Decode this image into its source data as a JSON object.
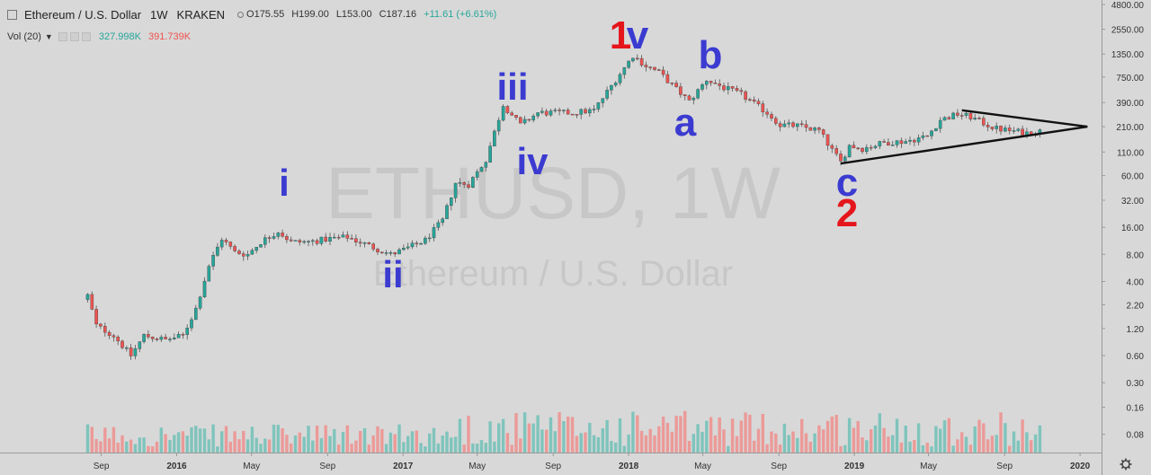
{
  "header": {
    "title": "Ethereum / U.S. Dollar",
    "interval": "1W",
    "exchange": "KRAKEN",
    "open": "O175.55",
    "high": "H199.00",
    "low": "L153.00",
    "close": "C187.16",
    "change": "+11.61 (+6.61%)"
  },
  "volume_legend": {
    "label": "Vol (20)",
    "value_up": "327.998K",
    "value_down": "391.739K"
  },
  "watermark": {
    "symbol": "ETHUSD, 1W",
    "name": "Ethereum / U.S. Dollar"
  },
  "colors": {
    "background": "#d8d8d8",
    "up": "#26a69a",
    "down": "#ef5350",
    "wave_label_blue": "#3b3bd1",
    "wave_label_red": "#e5161b"
  },
  "chart_data": {
    "type": "candlestick",
    "scale": "log",
    "y_ticks": [
      "4800.00",
      "2550.00",
      "1350.00",
      "750.00",
      "390.00",
      "210.00",
      "110.00",
      "60.00",
      "32.00",
      "16.00",
      "8.00",
      "4.00",
      "2.20",
      "1.20",
      "0.60",
      "0.30",
      "0.16",
      "0.08"
    ],
    "x_ticks": [
      "Sep",
      "2016",
      "May",
      "Sep",
      "2017",
      "May",
      "Sep",
      "2018",
      "May",
      "Sep",
      "2019",
      "May",
      "Sep",
      "2020"
    ],
    "price_path": [
      [
        "2015-08-10",
        2.8
      ],
      [
        "2015-08-24",
        1.3
      ],
      [
        "2015-09-21",
        1.0
      ],
      [
        "2015-10-19",
        0.6
      ],
      [
        "2015-11-09",
        1.0
      ],
      [
        "2015-12-14",
        0.9
      ],
      [
        "2016-01-11",
        1.0
      ],
      [
        "2016-02-01",
        2.0
      ],
      [
        "2016-02-22",
        6.0
      ],
      [
        "2016-03-14",
        12.0
      ],
      [
        "2016-04-04",
        8.5
      ],
      [
        "2016-04-25",
        8.0
      ],
      [
        "2016-05-16",
        11.0
      ],
      [
        "2016-06-13",
        14.5
      ],
      [
        "2016-07-04",
        11.0
      ],
      [
        "2016-08-01",
        11.0
      ],
      [
        "2016-09-05",
        12.0
      ],
      [
        "2016-10-03",
        12.5
      ],
      [
        "2016-11-07",
        10.0
      ],
      [
        "2016-12-12",
        8.0
      ],
      [
        "2017-01-02",
        9.0
      ],
      [
        "2017-02-06",
        11.5
      ],
      [
        "2017-03-06",
        19.0
      ],
      [
        "2017-03-27",
        50.0
      ],
      [
        "2017-04-17",
        48.0
      ],
      [
        "2017-05-15",
        90.0
      ],
      [
        "2017-06-05",
        260.0
      ],
      [
        "2017-06-12",
        370.0
      ],
      [
        "2017-07-10",
        220.0
      ],
      [
        "2017-08-07",
        300.0
      ],
      [
        "2017-09-04",
        300.0
      ],
      [
        "2017-10-02",
        300.0
      ],
      [
        "2017-11-06",
        320.0
      ],
      [
        "2017-12-11",
        700.0
      ],
      [
        "2018-01-08",
        1300.0
      ],
      [
        "2018-01-29",
        1000.0
      ],
      [
        "2018-02-19",
        850.0
      ],
      [
        "2018-03-19",
        550.0
      ],
      [
        "2018-04-09",
        400.0
      ],
      [
        "2018-05-07",
        700.0
      ],
      [
        "2018-06-04",
        570.0
      ],
      [
        "2018-07-02",
        480.0
      ],
      [
        "2018-08-13",
        300.0
      ],
      [
        "2018-09-03",
        220.0
      ],
      [
        "2018-10-01",
        215.0
      ],
      [
        "2018-11-05",
        190.0
      ],
      [
        "2018-11-26",
        115.0
      ],
      [
        "2018-12-10",
        85.0
      ],
      [
        "2018-12-24",
        130.0
      ],
      [
        "2019-01-14",
        120.0
      ],
      [
        "2019-02-18",
        140.0
      ],
      [
        "2019-03-25",
        145.0
      ],
      [
        "2019-04-29",
        165.0
      ],
      [
        "2019-05-20",
        250.0
      ],
      [
        "2019-06-17",
        290.0
      ],
      [
        "2019-07-08",
        270.0
      ],
      [
        "2019-07-29",
        230.0
      ],
      [
        "2019-08-19",
        200.0
      ],
      [
        "2019-09-09",
        190.0
      ],
      [
        "2019-10-07",
        180.0
      ],
      [
        "2019-10-28",
        187.0
      ]
    ],
    "wave_labels": [
      {
        "text": "i",
        "color": "blue"
      },
      {
        "text": "ii",
        "color": "blue"
      },
      {
        "text": "iii",
        "color": "blue"
      },
      {
        "text": "iv",
        "color": "blue"
      },
      {
        "text": "v",
        "color": "blue"
      },
      {
        "text": "1",
        "color": "red"
      },
      {
        "text": "a",
        "color": "blue"
      },
      {
        "text": "b",
        "color": "blue"
      },
      {
        "text": "c",
        "color": "blue"
      },
      {
        "text": "2",
        "color": "red"
      }
    ],
    "triangle": {
      "upper": [
        [
          "2019-06-24",
          320
        ],
        [
          "2020-01-13",
          210
        ]
      ],
      "lower": [
        [
          "2018-12-10",
          82
        ],
        [
          "2020-01-13",
          210
        ]
      ]
    }
  }
}
